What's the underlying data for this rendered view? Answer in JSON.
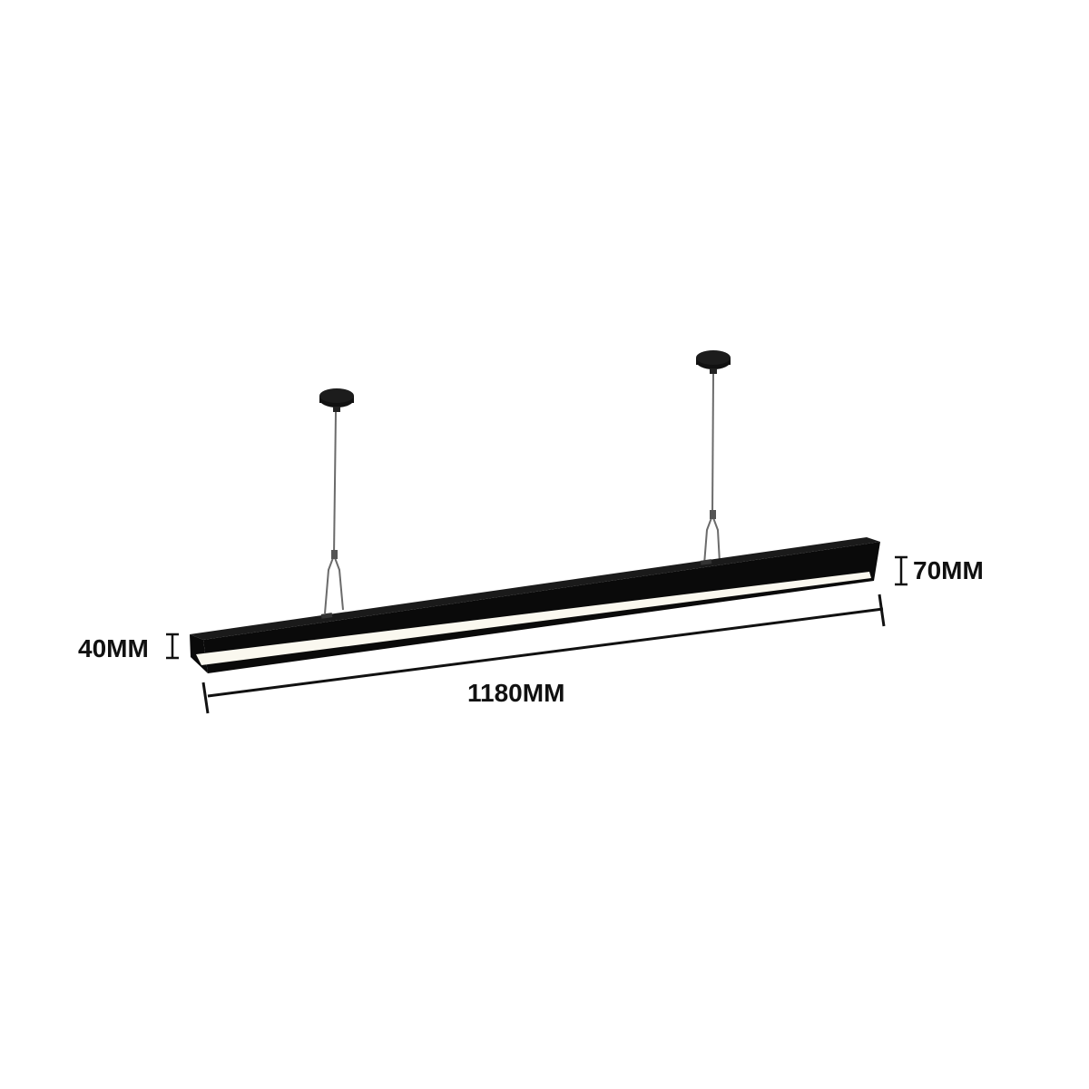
{
  "dimensions": {
    "length": "1180MM",
    "height_left": "40MM",
    "height_right": "70MM"
  },
  "colors": {
    "background": "#ffffff",
    "fixture_body": "#0a0a0a",
    "diffuser": "#faf8ef",
    "cable": "#6b6b6b",
    "dimension_line": "#111111"
  }
}
